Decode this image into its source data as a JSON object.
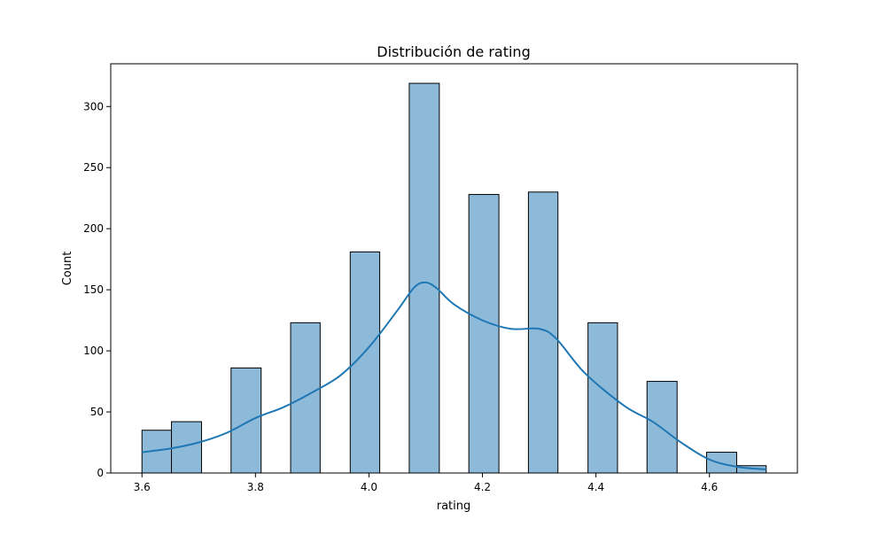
{
  "chart_data": {
    "type": "bar",
    "title": "Distribución de rating",
    "xlabel": "rating",
    "ylabel": "Count",
    "xlim": [
      3.545,
      4.755
    ],
    "ylim": [
      0,
      335
    ],
    "xticks": [
      "3.6",
      "3.8",
      "4.0",
      "4.2",
      "4.4",
      "4.6"
    ],
    "xtick_values": [
      3.6,
      3.8,
      4.0,
      4.2,
      4.4,
      4.6
    ],
    "yticks": [
      "0",
      "50",
      "100",
      "150",
      "200",
      "250",
      "300"
    ],
    "ytick_values": [
      0,
      50,
      100,
      150,
      200,
      250,
      300
    ],
    "grid": false,
    "bar_color": "#8ebad9",
    "edge_color": "#000000",
    "kde_color": "#1f77b4",
    "bins": [
      {
        "x0": 3.6,
        "x1": 3.652,
        "count": 35
      },
      {
        "x0": 3.652,
        "x1": 3.705,
        "count": 42
      },
      {
        "x0": 3.705,
        "x1": 3.757,
        "count": 0
      },
      {
        "x0": 3.757,
        "x1": 3.81,
        "count": 86
      },
      {
        "x0": 3.81,
        "x1": 3.862,
        "count": 0
      },
      {
        "x0": 3.862,
        "x1": 3.914,
        "count": 123
      },
      {
        "x0": 3.914,
        "x1": 3.967,
        "count": 0
      },
      {
        "x0": 3.967,
        "x1": 4.019,
        "count": 181
      },
      {
        "x0": 4.019,
        "x1": 4.071,
        "count": 0
      },
      {
        "x0": 4.071,
        "x1": 4.124,
        "count": 319
      },
      {
        "x0": 4.124,
        "x1": 4.176,
        "count": 0
      },
      {
        "x0": 4.176,
        "x1": 4.229,
        "count": 228
      },
      {
        "x0": 4.229,
        "x1": 4.281,
        "count": 0
      },
      {
        "x0": 4.281,
        "x1": 4.333,
        "count": 230
      },
      {
        "x0": 4.333,
        "x1": 4.386,
        "count": 0
      },
      {
        "x0": 4.386,
        "x1": 4.438,
        "count": 123
      },
      {
        "x0": 4.438,
        "x1": 4.49,
        "count": 0
      },
      {
        "x0": 4.49,
        "x1": 4.543,
        "count": 75
      },
      {
        "x0": 4.543,
        "x1": 4.595,
        "count": 0
      },
      {
        "x0": 4.595,
        "x1": 4.648,
        "count": 17
      },
      {
        "x0": 4.648,
        "x1": 4.7,
        "count": 6
      }
    ],
    "kde": [
      {
        "x": 3.6,
        "y": 17
      },
      {
        "x": 3.65,
        "y": 20
      },
      {
        "x": 3.7,
        "y": 25
      },
      {
        "x": 3.75,
        "y": 33
      },
      {
        "x": 3.8,
        "y": 45
      },
      {
        "x": 3.85,
        "y": 54
      },
      {
        "x": 3.9,
        "y": 66
      },
      {
        "x": 3.95,
        "y": 80
      },
      {
        "x": 4.0,
        "y": 103
      },
      {
        "x": 4.05,
        "y": 133
      },
      {
        "x": 4.08,
        "y": 152
      },
      {
        "x": 4.1,
        "y": 156
      },
      {
        "x": 4.12,
        "y": 151
      },
      {
        "x": 4.15,
        "y": 138
      },
      {
        "x": 4.2,
        "y": 125
      },
      {
        "x": 4.25,
        "y": 118
      },
      {
        "x": 4.3,
        "y": 118
      },
      {
        "x": 4.33,
        "y": 110
      },
      {
        "x": 4.38,
        "y": 82
      },
      {
        "x": 4.45,
        "y": 55
      },
      {
        "x": 4.5,
        "y": 42
      },
      {
        "x": 4.55,
        "y": 25
      },
      {
        "x": 4.6,
        "y": 11
      },
      {
        "x": 4.65,
        "y": 5
      },
      {
        "x": 4.7,
        "y": 3
      }
    ]
  }
}
